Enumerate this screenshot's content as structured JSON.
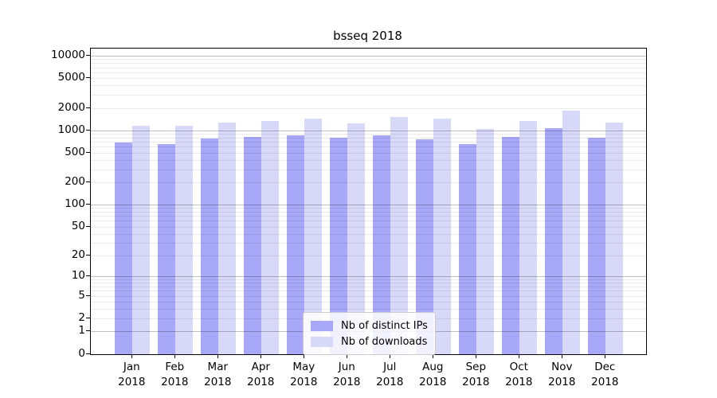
{
  "chart_data": {
    "type": "bar",
    "title": "bsseq 2018",
    "categories": [
      "Jan 2018",
      "Feb 2018",
      "Mar 2018",
      "Apr 2018",
      "May 2018",
      "Jun 2018",
      "Jul 2018",
      "Aug 2018",
      "Sep 2018",
      "Oct 2018",
      "Nov 2018",
      "Dec 2018"
    ],
    "series": [
      {
        "name": "Nb of distinct IPs",
        "color": "#a8a8f8",
        "values": [
          680,
          650,
          780,
          820,
          850,
          800,
          865,
          760,
          660,
          810,
          1080,
          790
        ]
      },
      {
        "name": "Nb of downloads",
        "color": "#d8d8f8",
        "values": [
          1140,
          1140,
          1270,
          1330,
          1420,
          1250,
          1500,
          1435,
          1030,
          1330,
          1840,
          1260
        ]
      }
    ],
    "yscale": "log10(1+y)",
    "ylim": [
      0,
      12000
    ],
    "yticks": [
      0,
      1,
      2,
      5,
      10,
      20,
      50,
      100,
      200,
      500,
      1000,
      2000,
      5000,
      10000
    ],
    "grid": {
      "major": "powers of 10",
      "minor": "2-9 per decade"
    },
    "legend_position": "lower center inside plot",
    "colors": {
      "major_grid": "rgba(0,0,0,0.25)",
      "minor_grid": "rgba(0,0,0,0.08)",
      "axis": "#000000",
      "text": "#000000"
    }
  }
}
